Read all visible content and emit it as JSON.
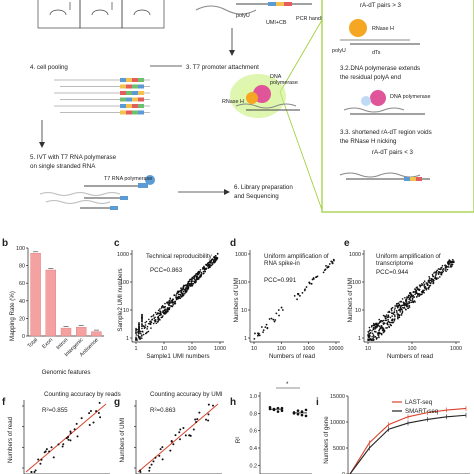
{
  "schematic": {
    "polyU_top": "polyU",
    "pcr_handle": "PCR handle",
    "umi_cb": "UMI+CB",
    "step3_2_header": "rA-dT pairs > 3",
    "rnase_h_label": "RNase H",
    "polyU_label": "polyU",
    "dts_label": "dTs",
    "step3_2_text": [
      "3.2.DNA polymerase extends",
      "the residual polyA end"
    ],
    "dna_pol_label": "DNA polymerase",
    "step3_3_text": [
      "3.3. shortened rA-dT region voids",
      "the RNase H nicking",
      "rA-dT pairs < 3"
    ],
    "step3": "3. T7 promoter attachment",
    "dna_pol_mid": [
      "DNA",
      "polymerase"
    ],
    "rnase_h_mid": "RNase H",
    "step4": "4. cell pooling",
    "step5": [
      "5. IVT  with T7 RNA polymerase",
      "on single stranded RNA"
    ],
    "t7_label": "T7 RNA polymerase",
    "step6": [
      "6. Library preparation",
      "and Sequencing"
    ]
  },
  "panels": {
    "b": "b",
    "c": "c",
    "d": "d",
    "e": "e",
    "f": "f",
    "g": "g",
    "h": "h",
    "i": "i"
  },
  "colors": {
    "bar": "#f4a1a1",
    "bar_edge": "#e07777",
    "regression": "#d9412b",
    "rnase": "#f5a623",
    "polymerase": "#e0559a",
    "glow": "#c8f07a",
    "last_seq": "#d9412b",
    "smart_seq": "#222222"
  },
  "chart_data": [
    {
      "panel": "b",
      "type": "bar",
      "categories": [
        "Total",
        "Exon",
        "Intron",
        "Intergenic",
        "Antisense"
      ],
      "values": [
        94,
        75,
        9,
        10,
        5
      ],
      "ylabel": "Mapping Rate (%)",
      "xlabel": "Genomic features",
      "ylim": [
        0,
        100
      ],
      "yticks": [
        "0",
        "20",
        "40",
        "60",
        "80",
        "100"
      ]
    },
    {
      "panel": "c",
      "type": "scatter",
      "title": "Technical reproducibility",
      "annotation": "PCC=0.863",
      "xlabel": "Sample1 UMI numbers",
      "ylabel": "Sample2 UMI numbers",
      "log_scale": true,
      "xticks": [
        "1",
        "10",
        "100",
        "1000"
      ],
      "yticks": [
        "1",
        "10",
        "100",
        "1000"
      ]
    },
    {
      "panel": "d",
      "type": "scatter",
      "title": [
        "Uniform amplification of",
        "RNA spike-in"
      ],
      "annotation": "PCC=0.991",
      "xlabel": "Numbers of read",
      "ylabel": "Numbers of UMI",
      "log_scale": true,
      "xticks": [
        "10",
        "100",
        "1000",
        "10000"
      ],
      "yticks": [
        "1",
        "10",
        "100",
        "1000"
      ]
    },
    {
      "panel": "e",
      "type": "scatter",
      "title": [
        "Uniform amplification of",
        "transcriptome"
      ],
      "annotation": "PCC=0.944",
      "xlabel": "Numbers of read",
      "ylabel": "Numbers of UMI",
      "log_scale": true,
      "xticks": [
        "10",
        "100",
        "1000"
      ],
      "yticks": [
        "1",
        "10",
        "100",
        "1000"
      ]
    },
    {
      "panel": "f",
      "type": "scatter",
      "title": "Counting accuracy by reads",
      "annotation": "R²=0.855",
      "ylabel": "Numbers of read",
      "regression": true
    },
    {
      "panel": "g",
      "type": "scatter",
      "title": "Counting accuracy by UMI",
      "annotation": "R²=0.863",
      "ylabel": "Numbers of UMI",
      "regression": true
    },
    {
      "panel": "h",
      "type": "scatter",
      "ylabel": "R²",
      "yticks": [
        "0.2",
        "0.4",
        "0.6",
        "0.8",
        "1.0"
      ],
      "significance": "*",
      "groups": [
        {
          "values": [
            0.85,
            0.84,
            0.86,
            0.83,
            0.87,
            0.85,
            0.82,
            0.86
          ]
        },
        {
          "values": [
            0.8,
            0.83,
            0.78,
            0.84,
            0.81,
            0.79,
            0.82,
            0.77
          ]
        }
      ]
    },
    {
      "panel": "i",
      "type": "line",
      "ylabel": "Numbers of gene",
      "yticks": [
        "0",
        "5000",
        "10000",
        "15000"
      ],
      "ylim": [
        0,
        15000
      ],
      "series": [
        {
          "name": "LAST-seq",
          "values": [
            0,
            6000,
            9500,
            11000,
            11800,
            12300,
            12600
          ]
        },
        {
          "name": "SMART-seq",
          "values": [
            0,
            5000,
            8600,
            9800,
            10500,
            11000,
            11300
          ]
        }
      ]
    }
  ]
}
